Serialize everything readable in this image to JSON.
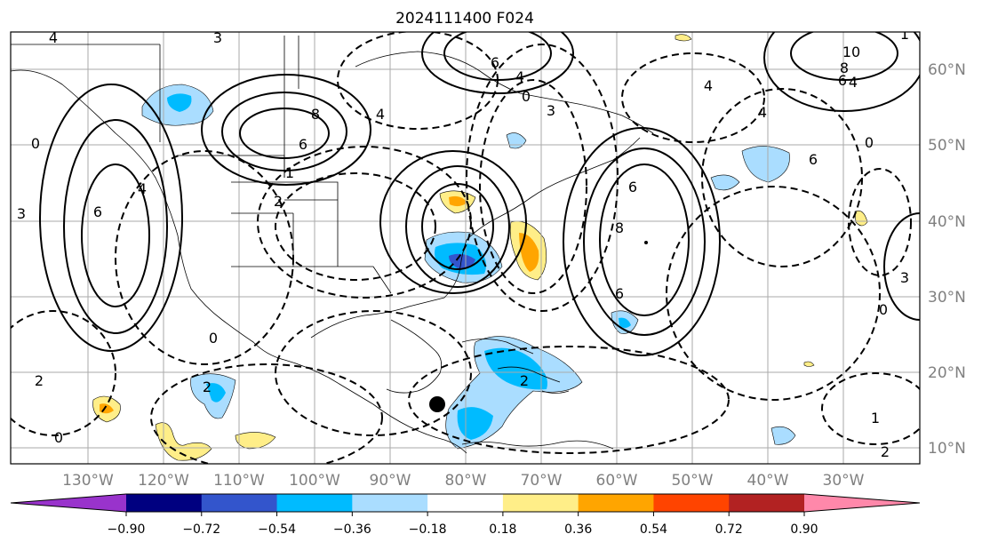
{
  "title": "2024111400 F024",
  "lon_labels": [
    "130°W",
    "120°W",
    "110°W",
    "100°W",
    "90°W",
    "80°W",
    "70°W",
    "60°W",
    "50°W",
    "40°W",
    "30°W"
  ],
  "lat_labels": [
    "60°N",
    "50°N",
    "40°N",
    "30°N",
    "20°N",
    "10°N"
  ],
  "colorbar": {
    "colors": [
      "#9933cc",
      "#000080",
      "#3355cc",
      "#00bbff",
      "#aaddff",
      "#ffffff",
      "#ffee88",
      "#ffa500",
      "#ff4400",
      "#b22222",
      "#ff88aa"
    ],
    "tick_labels": [
      "−0.90",
      "−0.72",
      "−0.54",
      "−0.36",
      "−0.18",
      "0.18",
      "0.36",
      "0.54",
      "0.72",
      "0.90"
    ]
  },
  "contour_labels": [
    "4",
    "3",
    "6",
    "4",
    "8",
    "4",
    "6",
    "10",
    "8",
    "6",
    "4",
    "4",
    "6",
    "2",
    "0",
    "3",
    "4",
    "6",
    "1",
    "0",
    "0",
    "3",
    "4",
    "8",
    "6",
    "6",
    "0",
    "2",
    "2",
    "0",
    "2",
    "1",
    "2",
    "0",
    "3",
    "1"
  ],
  "legend": "none",
  "grid": "on"
}
